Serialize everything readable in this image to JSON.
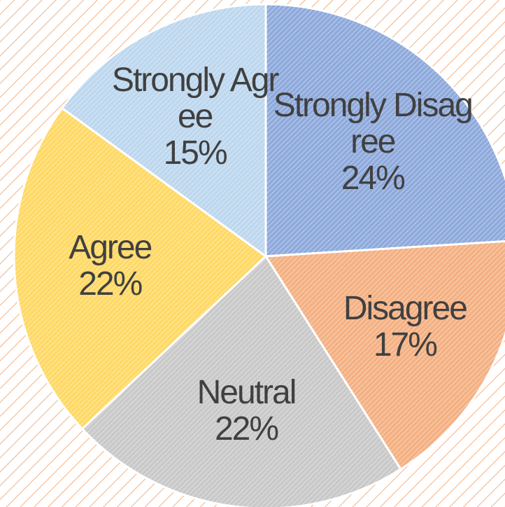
{
  "chart_data": {
    "type": "pie",
    "categories": [
      "Strongly Disagree",
      "Disagree",
      "Neutral",
      "Agree",
      "Strongly Agree"
    ],
    "values": [
      24,
      17,
      22,
      22,
      15
    ],
    "value_labels": [
      "24%",
      "17%",
      "22%",
      "22%",
      "15%"
    ],
    "colors": [
      "#8faadc",
      "#f4b183",
      "#c9c9c9",
      "#ffd966",
      "#bdd7ee"
    ]
  }
}
